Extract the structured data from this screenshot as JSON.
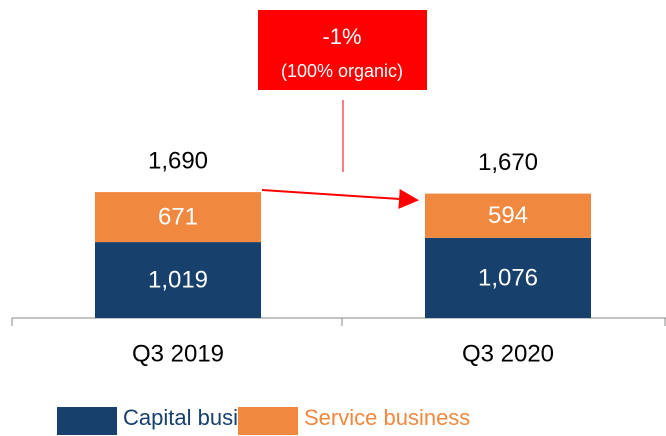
{
  "chart_data": {
    "type": "stacked_bar",
    "categories": [
      "Q3 2019",
      "Q3 2020"
    ],
    "series": [
      {
        "name": "Capital business",
        "color": "#17406d",
        "values": [
          1019,
          1076
        ],
        "value_labels": [
          "1,019",
          "1,076"
        ]
      },
      {
        "name": "Service business",
        "color": "#f0883f",
        "values": [
          671,
          594
        ]
      }
    ],
    "totals": [
      1690,
      1670
    ],
    "total_labels": [
      "1,690",
      "1,670"
    ],
    "annotation": {
      "text": "-1%",
      "subtext": "(100% organic)",
      "color": "#ff0000"
    }
  }
}
